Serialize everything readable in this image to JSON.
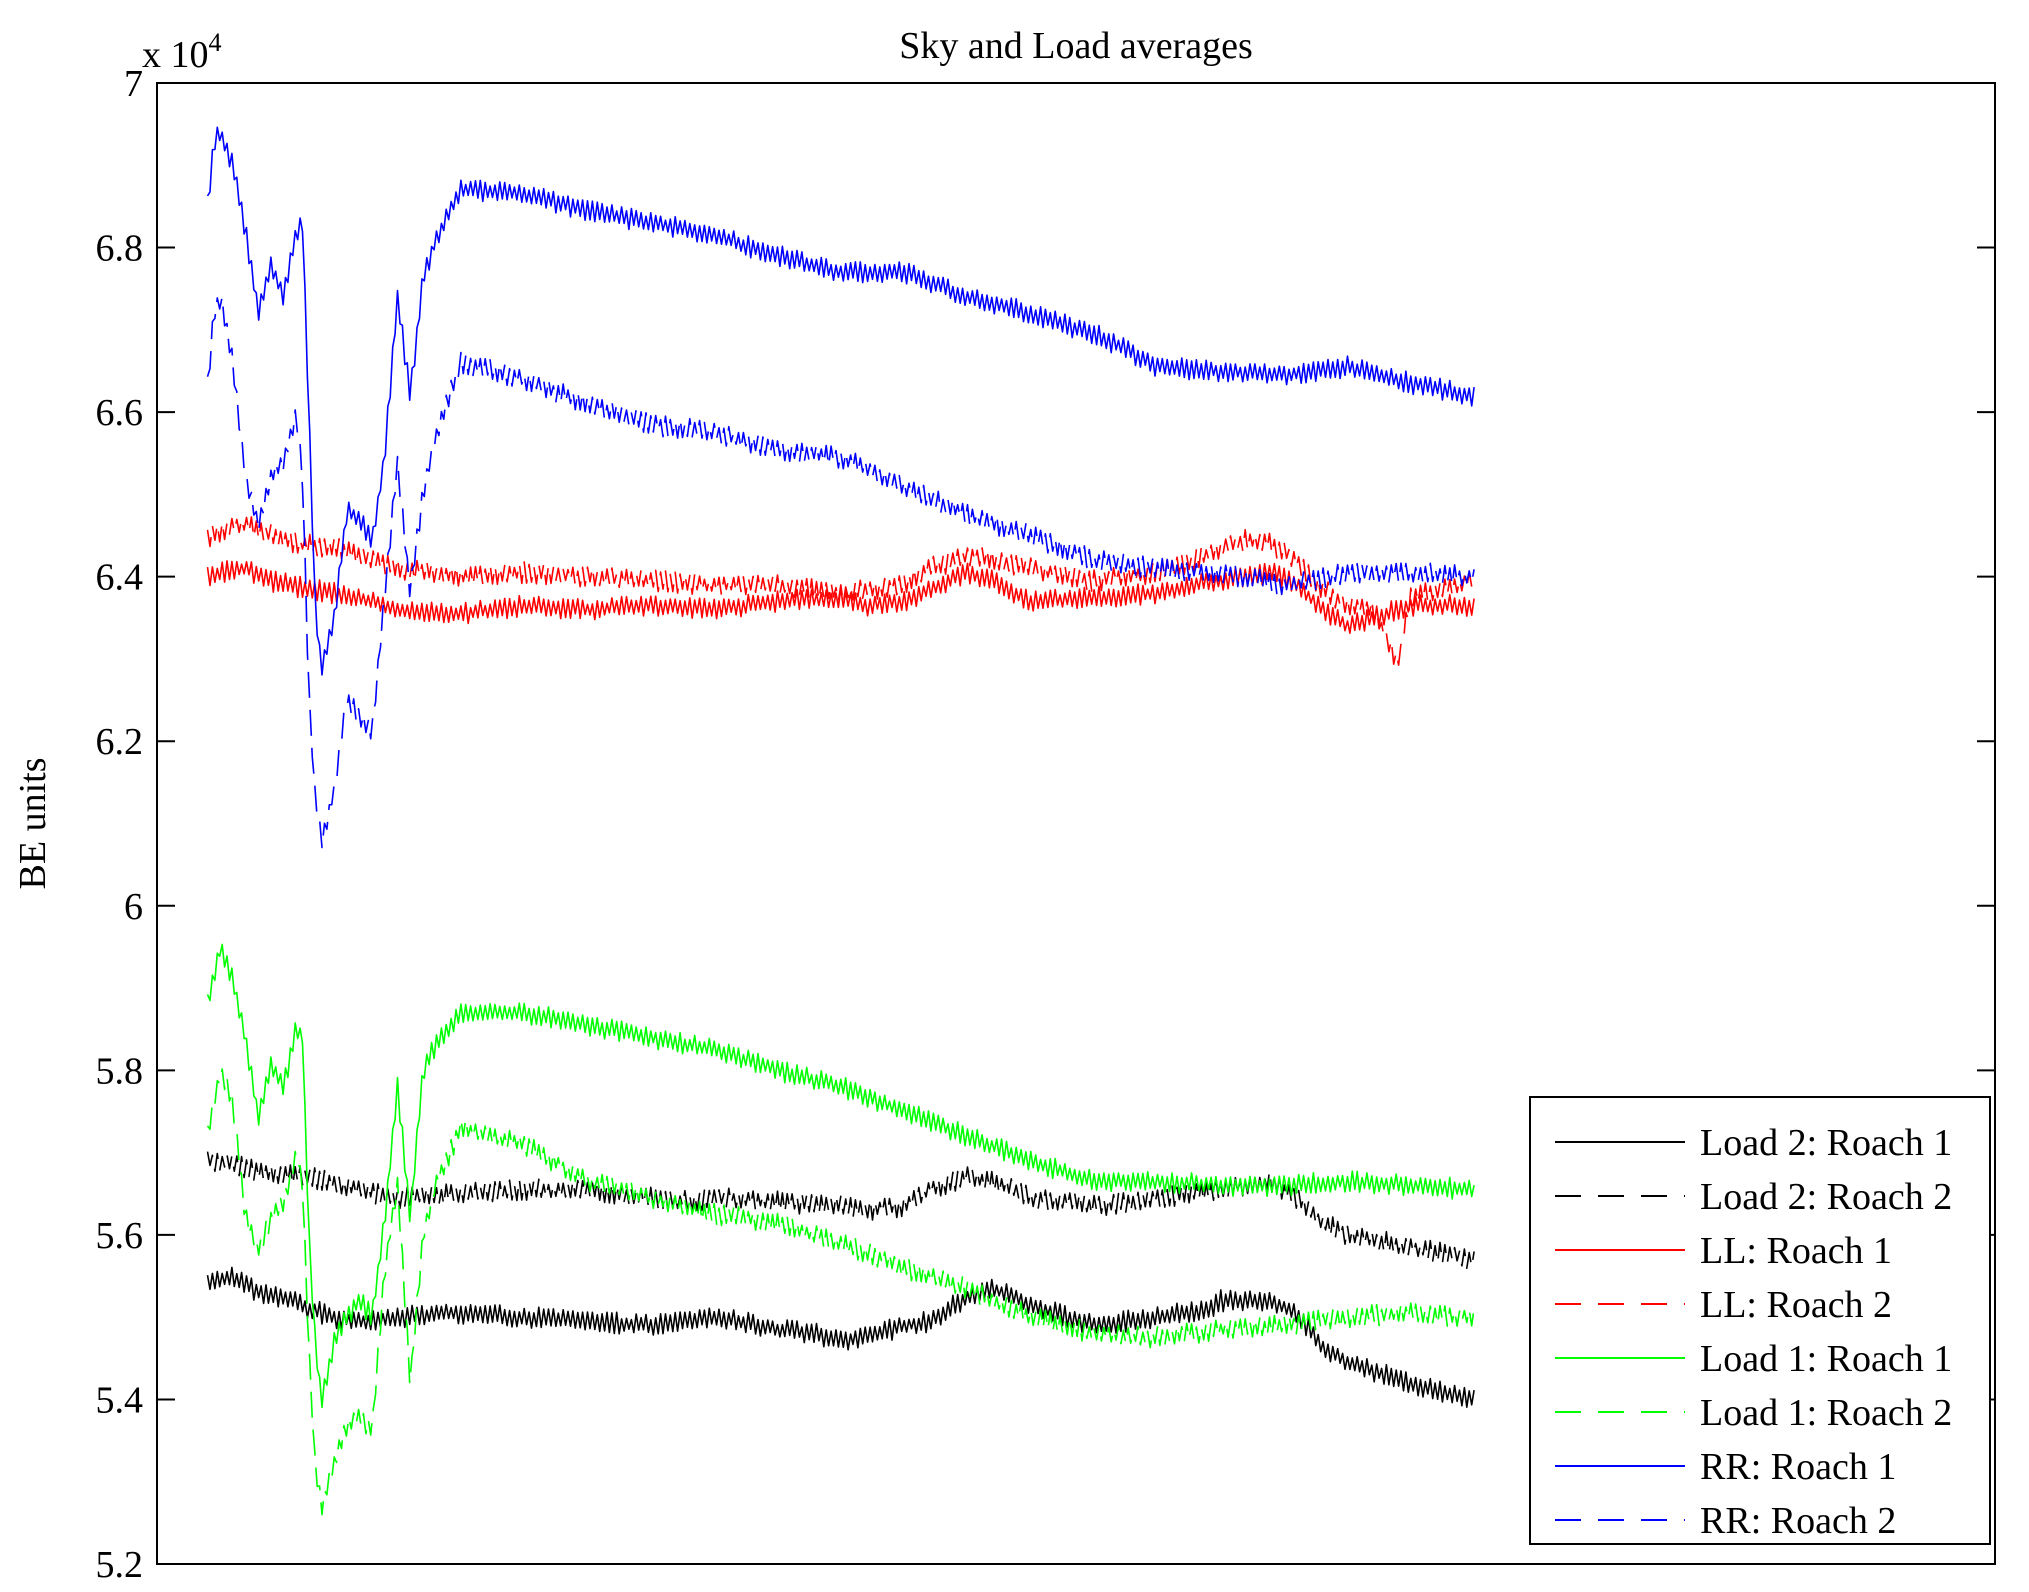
{
  "chart_data": {
    "type": "line",
    "title": "Sky and Load averages",
    "xlabel": "",
    "ylabel": "BE units",
    "y_multiplier": "x 10",
    "y_multiplier_exponent": "4",
    "xlim": [
      0,
      1
    ],
    "ylim": [
      5.2,
      7.0
    ],
    "y_ticks": [
      5.2,
      5.4,
      5.6,
      5.8,
      6.0,
      6.2,
      6.4,
      6.6,
      6.8,
      7.0
    ],
    "y_tick_labels": [
      "5.2",
      "5.4",
      "5.6",
      "5.8",
      "6",
      "6.2",
      "6.4",
      "6.6",
      "6.8",
      "7"
    ],
    "x_ticks_shown": false,
    "grid": false,
    "legend": "bottom-right",
    "series": [
      {
        "name": "Load 2: Roach 1",
        "color": "#000000",
        "style": "solid",
        "x": [
          0.0,
          0.01,
          0.02,
          0.03,
          0.04,
          0.05,
          0.06,
          0.07,
          0.08,
          0.09,
          0.1,
          0.12,
          0.15,
          0.2,
          0.25,
          0.3,
          0.35,
          0.4,
          0.42,
          0.45,
          0.48,
          0.5,
          0.52,
          0.55,
          0.57,
          0.6,
          0.62,
          0.65,
          0.7,
          0.75,
          0.79,
          0.8,
          0.82,
          0.84,
          0.86,
          0.88,
          0.9,
          0.95,
          1.0
        ],
        "y": [
          5.54,
          5.545,
          5.55,
          5.54,
          5.53,
          5.525,
          5.525,
          5.52,
          5.51,
          5.505,
          5.5,
          5.495,
          5.5,
          5.505,
          5.5,
          5.495,
          5.49,
          5.5,
          5.495,
          5.485,
          5.48,
          5.47,
          5.475,
          5.49,
          5.495,
          5.525,
          5.535,
          5.515,
          5.49,
          5.5,
          5.51,
          5.52,
          5.52,
          5.52,
          5.505,
          5.465,
          5.445,
          5.42,
          5.4
        ]
      },
      {
        "name": "Load 2: Roach 2",
        "color": "#000000",
        "style": "dashed",
        "x": [
          0.0,
          0.01,
          0.02,
          0.05,
          0.08,
          0.1,
          0.12,
          0.15,
          0.2,
          0.25,
          0.3,
          0.35,
          0.38,
          0.4,
          0.45,
          0.5,
          0.52,
          0.55,
          0.57,
          0.6,
          0.62,
          0.65,
          0.7,
          0.75,
          0.8,
          0.82,
          0.84,
          0.86,
          0.88,
          0.9,
          0.95,
          1.0
        ],
        "y": [
          5.69,
          5.69,
          5.685,
          5.675,
          5.67,
          5.665,
          5.655,
          5.645,
          5.65,
          5.655,
          5.655,
          5.645,
          5.64,
          5.645,
          5.64,
          5.635,
          5.63,
          5.635,
          5.655,
          5.67,
          5.665,
          5.645,
          5.635,
          5.645,
          5.655,
          5.66,
          5.665,
          5.645,
          5.615,
          5.6,
          5.585,
          5.57
        ]
      },
      {
        "name": "LL: Roach 1",
        "color": "#ff0000",
        "style": "solid",
        "x": [
          0.0,
          0.01,
          0.03,
          0.05,
          0.08,
          0.1,
          0.12,
          0.15,
          0.2,
          0.25,
          0.3,
          0.35,
          0.4,
          0.45,
          0.5,
          0.52,
          0.55,
          0.57,
          0.6,
          0.62,
          0.65,
          0.7,
          0.75,
          0.78,
          0.8,
          0.82,
          0.84,
          0.86,
          0.88,
          0.9,
          0.92,
          0.95,
          1.0
        ],
        "y": [
          6.4,
          6.405,
          6.41,
          6.395,
          6.385,
          6.38,
          6.375,
          6.36,
          6.355,
          6.365,
          6.36,
          6.365,
          6.36,
          6.37,
          6.375,
          6.365,
          6.37,
          6.385,
          6.405,
          6.395,
          6.37,
          6.375,
          6.38,
          6.39,
          6.395,
          6.4,
          6.405,
          6.39,
          6.36,
          6.34,
          6.35,
          6.365,
          6.365
        ]
      },
      {
        "name": "LL: Roach 2",
        "color": "#ff0000",
        "style": "dashed",
        "x": [
          0.0,
          0.01,
          0.03,
          0.05,
          0.07,
          0.1,
          0.15,
          0.2,
          0.25,
          0.3,
          0.35,
          0.4,
          0.45,
          0.5,
          0.55,
          0.57,
          0.6,
          0.62,
          0.65,
          0.7,
          0.75,
          0.78,
          0.8,
          0.82,
          0.84,
          0.86,
          0.88,
          0.9,
          0.92,
          0.94,
          0.95,
          1.0
        ],
        "y": [
          6.445,
          6.455,
          6.465,
          6.45,
          6.44,
          6.435,
          6.41,
          6.4,
          6.405,
          6.4,
          6.395,
          6.39,
          6.39,
          6.38,
          6.39,
          6.41,
          6.425,
          6.42,
          6.41,
          6.395,
          6.405,
          6.42,
          6.435,
          6.445,
          6.44,
          6.42,
          6.385,
          6.365,
          6.36,
          6.295,
          6.375,
          6.395
        ]
      },
      {
        "name": "Load 1: Roach 1",
        "color": "#00ff00",
        "style": "solid",
        "x": [
          0.0,
          0.01,
          0.02,
          0.03,
          0.04,
          0.05,
          0.06,
          0.07,
          0.075,
          0.08,
          0.085,
          0.09,
          0.1,
          0.11,
          0.12,
          0.13,
          0.14,
          0.15,
          0.16,
          0.17,
          0.18,
          0.2,
          0.25,
          0.3,
          0.35,
          0.4,
          0.45,
          0.5,
          0.55,
          0.6,
          0.65,
          0.7,
          0.75,
          0.8,
          0.85,
          0.9,
          0.95,
          1.0
        ],
        "y": [
          5.88,
          5.95,
          5.91,
          5.84,
          5.74,
          5.81,
          5.78,
          5.85,
          5.84,
          5.6,
          5.47,
          5.4,
          5.47,
          5.5,
          5.52,
          5.5,
          5.62,
          5.78,
          5.62,
          5.8,
          5.83,
          5.87,
          5.87,
          5.855,
          5.84,
          5.825,
          5.8,
          5.78,
          5.75,
          5.72,
          5.69,
          5.665,
          5.665,
          5.66,
          5.66,
          5.665,
          5.66,
          5.655
        ]
      },
      {
        "name": "Load 1: Roach 2",
        "color": "#00ff00",
        "style": "dashed",
        "x": [
          0.0,
          0.01,
          0.02,
          0.03,
          0.04,
          0.05,
          0.06,
          0.07,
          0.075,
          0.08,
          0.085,
          0.09,
          0.1,
          0.11,
          0.12,
          0.13,
          0.14,
          0.15,
          0.16,
          0.17,
          0.18,
          0.2,
          0.25,
          0.3,
          0.35,
          0.4,
          0.45,
          0.5,
          0.55,
          0.6,
          0.65,
          0.7,
          0.75,
          0.8,
          0.85,
          0.9,
          0.95,
          1.0
        ],
        "y": [
          5.72,
          5.8,
          5.76,
          5.62,
          5.58,
          5.62,
          5.64,
          5.7,
          5.66,
          5.46,
          5.32,
          5.27,
          5.32,
          5.37,
          5.38,
          5.36,
          5.56,
          5.66,
          5.42,
          5.6,
          5.66,
          5.73,
          5.71,
          5.665,
          5.645,
          5.625,
          5.615,
          5.59,
          5.56,
          5.535,
          5.5,
          5.48,
          5.475,
          5.485,
          5.49,
          5.5,
          5.505,
          5.5
        ]
      },
      {
        "name": "RR: Roach 1",
        "color": "#0000ff",
        "style": "solid",
        "x": [
          0.0,
          0.005,
          0.01,
          0.02,
          0.03,
          0.04,
          0.05,
          0.06,
          0.07,
          0.075,
          0.08,
          0.085,
          0.09,
          0.1,
          0.11,
          0.12,
          0.13,
          0.14,
          0.15,
          0.16,
          0.17,
          0.18,
          0.2,
          0.25,
          0.3,
          0.35,
          0.4,
          0.45,
          0.5,
          0.55,
          0.6,
          0.65,
          0.7,
          0.72,
          0.75,
          0.8,
          0.85,
          0.9,
          0.95,
          1.0
        ],
        "y": [
          6.85,
          6.93,
          6.94,
          6.9,
          6.82,
          6.72,
          6.78,
          6.74,
          6.82,
          6.83,
          6.6,
          6.36,
          6.29,
          6.35,
          6.48,
          6.47,
          6.44,
          6.55,
          6.74,
          6.62,
          6.76,
          6.81,
          6.87,
          6.865,
          6.845,
          6.83,
          6.815,
          6.79,
          6.77,
          6.77,
          6.74,
          6.72,
          6.695,
          6.68,
          6.655,
          6.65,
          6.645,
          6.655,
          6.635,
          6.62
        ]
      },
      {
        "name": "RR: Roach 2",
        "color": "#0000ff",
        "style": "dashed",
        "x": [
          0.0,
          0.005,
          0.01,
          0.02,
          0.03,
          0.04,
          0.05,
          0.06,
          0.07,
          0.075,
          0.08,
          0.085,
          0.09,
          0.1,
          0.11,
          0.12,
          0.13,
          0.14,
          0.15,
          0.16,
          0.17,
          0.18,
          0.2,
          0.25,
          0.3,
          0.35,
          0.4,
          0.45,
          0.5,
          0.55,
          0.6,
          0.65,
          0.7,
          0.75,
          0.8,
          0.85,
          0.9,
          0.95,
          1.0
        ],
        "y": [
          6.63,
          6.72,
          6.74,
          6.66,
          6.52,
          6.46,
          6.52,
          6.54,
          6.6,
          6.52,
          6.26,
          6.13,
          6.08,
          6.14,
          6.25,
          6.23,
          6.21,
          6.38,
          6.54,
          6.38,
          6.5,
          6.57,
          6.66,
          6.64,
          6.61,
          6.585,
          6.575,
          6.555,
          6.545,
          6.51,
          6.475,
          6.45,
          6.42,
          6.41,
          6.405,
          6.39,
          6.405,
          6.405,
          6.4
        ]
      }
    ]
  }
}
